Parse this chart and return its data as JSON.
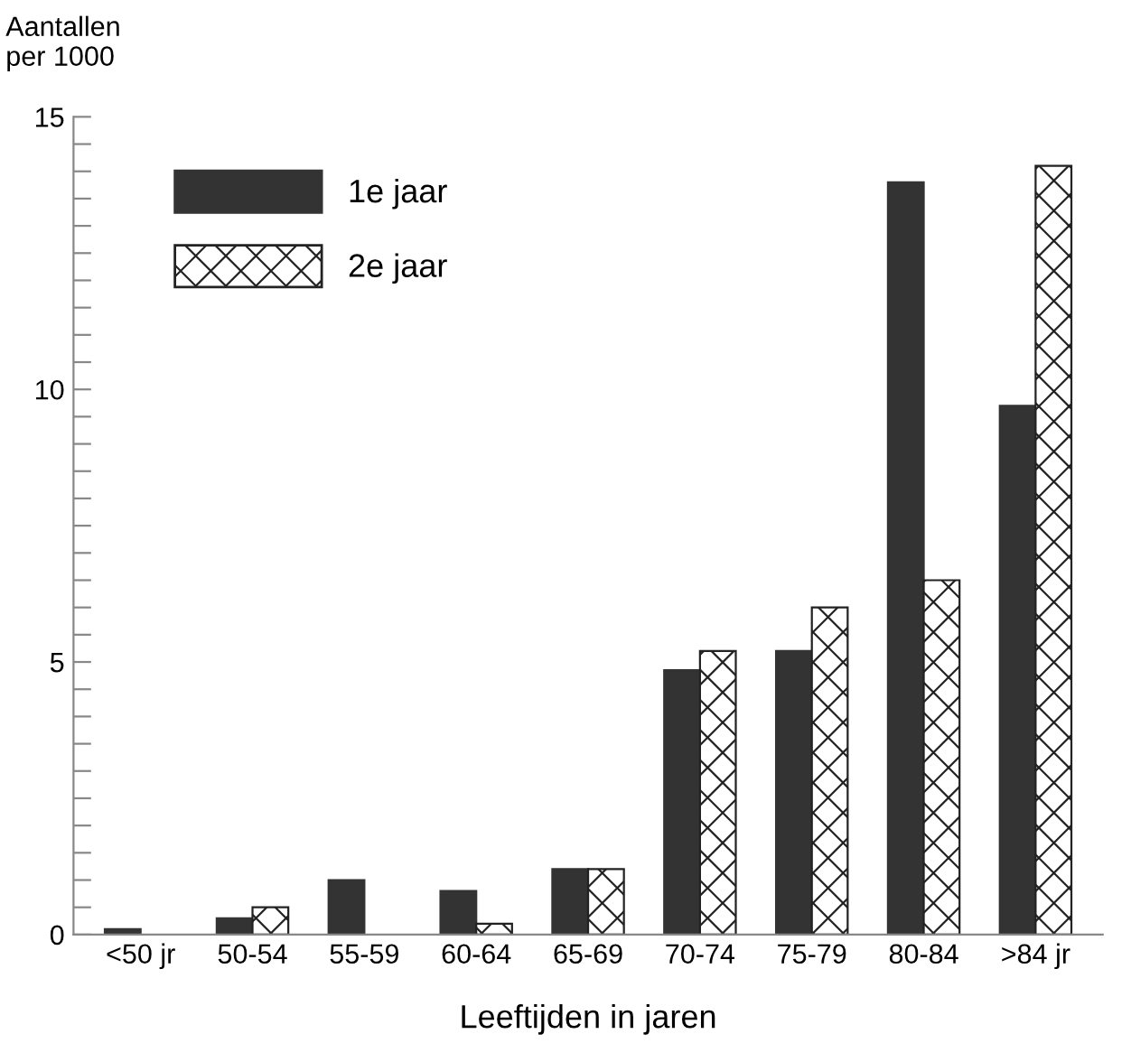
{
  "chart_data": {
    "type": "bar",
    "ylabel": "Aantallen\nper 1000",
    "xlabel": "Leeftijden in jaren",
    "categories": [
      "<50 jr",
      "50-54",
      "55-59",
      "60-64",
      "65-69",
      "70-74",
      "75-79",
      "80-84",
      ">84 jr"
    ],
    "series": [
      {
        "name": "1e jaar",
        "color": "#333333",
        "values": [
          0.1,
          0.3,
          1.0,
          0.8,
          1.2,
          4.85,
          5.2,
          13.8,
          9.7
        ]
      },
      {
        "name": "2e jaar",
        "color": "#222222",
        "values": [
          null,
          0.5,
          null,
          0.2,
          1.2,
          5.2,
          6.0,
          6.5,
          14.1
        ]
      }
    ],
    "ylim": [
      0,
      15
    ],
    "yticks": [
      0,
      {
        "value": 0.5,
        "label": null
      },
      {
        "value": 1,
        "label": null
      },
      {
        "value": 1.5,
        "label": null
      },
      {
        "value": 2,
        "label": null
      },
      {
        "value": 2.5,
        "label": null
      },
      {
        "value": 3,
        "label": null
      },
      {
        "value": 3.5,
        "label": null
      },
      {
        "value": 4,
        "label": null
      },
      {
        "value": 4.5,
        "label": null
      },
      5,
      {
        "value": 5.5,
        "label": null
      },
      {
        "value": 6,
        "label": null
      },
      {
        "value": 6.5,
        "label": null
      },
      {
        "value": 7,
        "label": null
      },
      {
        "value": 7.5,
        "label": null
      },
      {
        "value": 8,
        "label": null
      },
      {
        "value": 8.5,
        "label": null
      },
      {
        "value": 9,
        "label": null
      },
      {
        "value": 9.5,
        "label": null
      },
      10,
      {
        "value": 10.5,
        "label": null
      },
      {
        "value": 11,
        "label": null
      },
      {
        "value": 11.5,
        "label": null
      },
      {
        "value": 12,
        "label": null
      },
      {
        "value": 12.5,
        "label": null
      },
      {
        "value": 13,
        "label": null
      },
      {
        "value": 13.5,
        "label": null
      },
      {
        "value": 14,
        "label": null
      },
      {
        "value": 14.5,
        "label": null
      },
      15
    ],
    "grid": false,
    "legend": "top left"
  }
}
